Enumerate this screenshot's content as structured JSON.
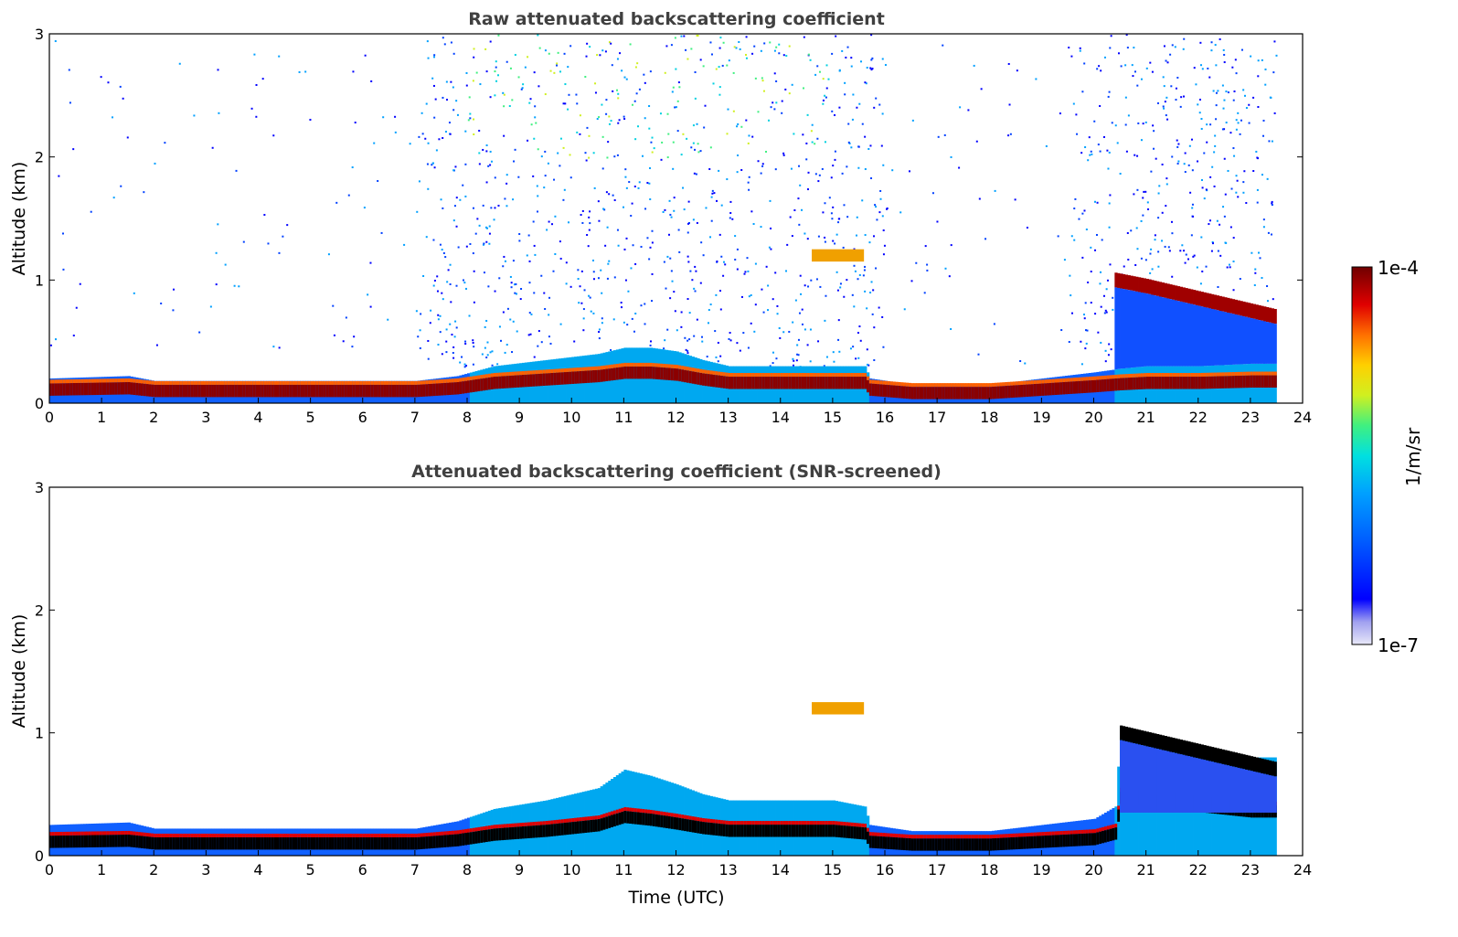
{
  "chart_data": [
    {
      "type": "heatmap",
      "title": "Raw attenuated backscattering coefficient",
      "xlabel": "",
      "ylabel": "Altitude (km)",
      "xlim": [
        0,
        24
      ],
      "ylim": [
        0,
        3
      ],
      "xticks": [
        "0",
        "1",
        "2",
        "3",
        "4",
        "5",
        "6",
        "7",
        "8",
        "9",
        "10",
        "11",
        "12",
        "13",
        "14",
        "15",
        "16",
        "17",
        "18",
        "19",
        "20",
        "21",
        "22",
        "23",
        "24"
      ],
      "yticks": [
        "0",
        "1",
        "2",
        "3"
      ],
      "features": {
        "mixed_layer_top_km": {
          "time": [
            0,
            1.5,
            2,
            4,
            6,
            7,
            7.8,
            8.5,
            9.5,
            10.5,
            11,
            11.5,
            12,
            12.5,
            13,
            14,
            15,
            15.6,
            15.7,
            16.5,
            18,
            19,
            20,
            20.5,
            21,
            22,
            23,
            23.5
          ],
          "altitude": [
            0.2,
            0.22,
            0.18,
            0.18,
            0.18,
            0.18,
            0.22,
            0.3,
            0.35,
            0.4,
            0.45,
            0.45,
            0.42,
            0.35,
            0.3,
            0.3,
            0.3,
            0.3,
            0.2,
            0.15,
            0.15,
            0.2,
            0.25,
            0.28,
            0.3,
            0.3,
            0.32,
            0.32
          ]
        },
        "residual_layer_km": {
          "time": [
            20.4,
            21,
            22,
            23,
            23.5
          ],
          "altitude": [
            1.0,
            0.95,
            0.85,
            0.75,
            0.7
          ]
        },
        "elevated_layer": {
          "time": [
            14.6,
            15.6
          ],
          "altitude_km": 1.2
        },
        "noise_extent_km": 3.0
      }
    },
    {
      "type": "heatmap",
      "title": "Attenuated backscattering coefficient (SNR-screened)",
      "xlabel": "Time (UTC)",
      "ylabel": "Altitude (km)",
      "xlim": [
        0,
        24
      ],
      "ylim": [
        0,
        3
      ],
      "xticks": [
        "0",
        "1",
        "2",
        "3",
        "4",
        "5",
        "6",
        "7",
        "8",
        "9",
        "10",
        "11",
        "12",
        "13",
        "14",
        "15",
        "16",
        "17",
        "18",
        "19",
        "20",
        "21",
        "22",
        "23",
        "24"
      ],
      "yticks": [
        "0",
        "1",
        "2",
        "3"
      ],
      "features": {
        "aerosol_top_km": {
          "time": [
            0,
            1.5,
            2,
            4,
            6,
            7,
            7.8,
            8.5,
            9.5,
            10.5,
            11,
            11.5,
            12,
            12.5,
            13,
            14,
            15,
            15.6,
            15.7,
            16.5,
            18,
            19,
            20,
            20.4,
            20.5,
            21,
            22,
            23,
            23.5
          ],
          "altitude": [
            0.25,
            0.27,
            0.22,
            0.22,
            0.22,
            0.22,
            0.28,
            0.38,
            0.45,
            0.55,
            0.7,
            0.65,
            0.58,
            0.5,
            0.45,
            0.45,
            0.45,
            0.4,
            0.25,
            0.2,
            0.2,
            0.25,
            0.3,
            0.4,
            1.05,
            1.0,
            0.9,
            0.8,
            0.8
          ]
        },
        "elevated_layer": {
          "time": [
            14.6,
            15.6
          ],
          "altitude_km": 1.2
        }
      }
    }
  ],
  "colorbar": {
    "label": "1/m/sr",
    "max_label": "1e-4",
    "min_label": "1e-7",
    "colors": [
      "#e8e8f8",
      "#a0a0f0",
      "#0000ff",
      "#0060ff",
      "#00a0ff",
      "#00e0e0",
      "#40f080",
      "#d0f020",
      "#ffd000",
      "#ff7000",
      "#e00000",
      "#700000"
    ]
  }
}
